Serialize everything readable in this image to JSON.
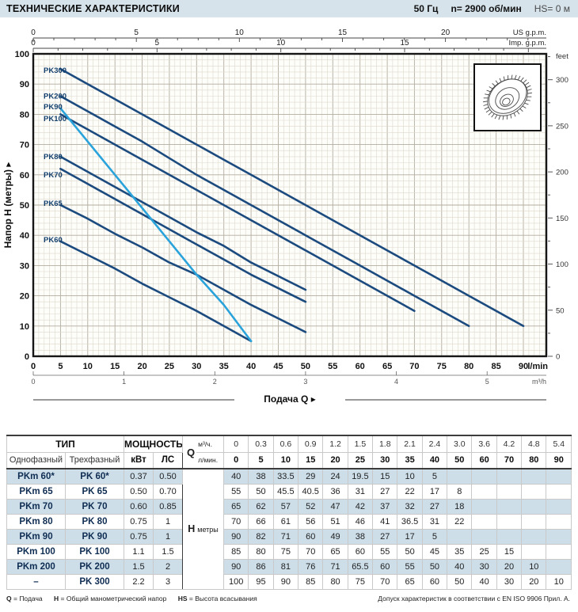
{
  "header": {
    "title": "ТЕХНИЧЕСКИЕ ХАРАКТЕРИСТИКИ",
    "frequency": "50 Гц",
    "speed": "n= 2900 об/мин",
    "suction": "HS= 0 м"
  },
  "chart_data": {
    "type": "line",
    "xlabel": "Подача Q",
    "ylabel": "Напор H (метры)",
    "x_unit": "l/min",
    "x_unit_secondary": "m³/h",
    "xlim": [
      0,
      94
    ],
    "ylim": [
      0,
      100
    ],
    "x_major_step": 5,
    "x_max_label": 90,
    "secondary_max": 5,
    "y_major_step": 10,
    "grid": "on",
    "top_axes": [
      {
        "label": "US g.p.m.",
        "lpm_per_unit": 3.785,
        "major_ticks": [
          0,
          5,
          10,
          15,
          20
        ]
      },
      {
        "label": "Imp. g.p.m.",
        "lpm_per_unit": 4.546,
        "major_ticks": [
          0,
          5,
          10,
          15
        ]
      }
    ],
    "right_axis": {
      "label": "feet",
      "major_step": 50,
      "minor_step": 25,
      "feet_per_m": 3.2808
    },
    "x_lpm": [
      0,
      5,
      10,
      15,
      20,
      25,
      30,
      35,
      40,
      50,
      60,
      70,
      80,
      90
    ],
    "series": [
      {
        "name": "PK300",
        "color": "#1b4a7e",
        "label_h": 94.5,
        "values": [
          100,
          95,
          90,
          85,
          80,
          75,
          70,
          65,
          60,
          50,
          40,
          30,
          20,
          10
        ]
      },
      {
        "name": "PK200",
        "color": "#1b4a7e",
        "label_h": 86,
        "values": [
          90,
          86,
          81,
          76,
          71,
          65.5,
          60,
          55,
          50,
          40,
          30,
          20,
          10,
          null
        ]
      },
      {
        "name": "PK100",
        "color": "#1b4a7e",
        "label_h": 78.5,
        "values": [
          85,
          80,
          75,
          70,
          65,
          60,
          55,
          50,
          45,
          35,
          25,
          15,
          null,
          null
        ]
      },
      {
        "name": "PK80",
        "color": "#1b4a7e",
        "label_h": 66,
        "values": [
          70,
          66,
          61,
          56,
          51,
          46,
          41,
          36.5,
          31,
          22,
          null,
          null,
          null,
          null
        ]
      },
      {
        "name": "PK70",
        "color": "#1b4a7e",
        "label_h": 60,
        "values": [
          65,
          62,
          57,
          52,
          47,
          42,
          37,
          32,
          27,
          18,
          null,
          null,
          null,
          null
        ]
      },
      {
        "name": "PK65",
        "color": "#1b4a7e",
        "label_h": 50.5,
        "values": [
          55,
          50,
          45.5,
          40.5,
          36,
          31,
          27,
          22,
          17,
          8,
          null,
          null,
          null,
          null
        ]
      },
      {
        "name": "PK60",
        "color": "#1b4a7e",
        "label_h": 38.5,
        "values": [
          40,
          38,
          33.5,
          29,
          24,
          19.5,
          15,
          10,
          5,
          null,
          null,
          null,
          null,
          null
        ]
      },
      {
        "name": "PK90",
        "color": "#2aa3db",
        "label_h": 82.5,
        "values": [
          90,
          82,
          71,
          60,
          49,
          38,
          27,
          17,
          5,
          null,
          null,
          null,
          null,
          null
        ]
      }
    ]
  },
  "table": {
    "headers": {
      "type": "ТИП",
      "power": "МОЩНОСТЬ",
      "single": "Однофазный",
      "three": "Трехфазный",
      "kw": "кВт",
      "hp": "ЛС",
      "q": "Q",
      "m3h": "м³/ч.",
      "lmin": "л/мин.",
      "h": "H",
      "h_unit": "метры"
    },
    "q_m3h": [
      "0",
      "0.3",
      "0.6",
      "0.9",
      "1.2",
      "1.5",
      "1.8",
      "2.1",
      "2.4",
      "3.0",
      "3.6",
      "4.2",
      "4.8",
      "5.4"
    ],
    "q_lmin": [
      "0",
      "5",
      "10",
      "15",
      "20",
      "25",
      "30",
      "35",
      "40",
      "50",
      "60",
      "70",
      "80",
      "90"
    ],
    "rows": [
      {
        "single": "PKm 60*",
        "three": "PK 60*",
        "kw": "0.37",
        "hp": "0.50",
        "h": [
          "40",
          "38",
          "33.5",
          "29",
          "24",
          "19.5",
          "15",
          "10",
          "5",
          "",
          "",
          "",
          "",
          ""
        ]
      },
      {
        "single": "PKm 65",
        "three": "PK 65",
        "kw": "0.50",
        "hp": "0.70",
        "h": [
          "55",
          "50",
          "45.5",
          "40.5",
          "36",
          "31",
          "27",
          "22",
          "17",
          "8",
          "",
          "",
          "",
          ""
        ]
      },
      {
        "single": "PKm 70",
        "three": "PK 70",
        "kw": "0.60",
        "hp": "0.85",
        "h": [
          "65",
          "62",
          "57",
          "52",
          "47",
          "42",
          "37",
          "32",
          "27",
          "18",
          "",
          "",
          "",
          ""
        ]
      },
      {
        "single": "PKm 80",
        "three": "PK 80",
        "kw": "0.75",
        "hp": "1",
        "h": [
          "70",
          "66",
          "61",
          "56",
          "51",
          "46",
          "41",
          "36.5",
          "31",
          "22",
          "",
          "",
          "",
          ""
        ]
      },
      {
        "single": "PKm 90",
        "three": "PK 90",
        "kw": "0.75",
        "hp": "1",
        "h": [
          "90",
          "82",
          "71",
          "60",
          "49",
          "38",
          "27",
          "17",
          "5",
          "",
          "",
          "",
          "",
          ""
        ]
      },
      {
        "single": "PKm 100",
        "three": "PK 100",
        "kw": "1.1",
        "hp": "1.5",
        "h": [
          "85",
          "80",
          "75",
          "70",
          "65",
          "60",
          "55",
          "50",
          "45",
          "35",
          "25",
          "15",
          "",
          ""
        ]
      },
      {
        "single": "PKm 200",
        "three": "PK 200",
        "kw": "1.5",
        "hp": "2",
        "h": [
          "90",
          "86",
          "81",
          "76",
          "71",
          "65.5",
          "60",
          "55",
          "50",
          "40",
          "30",
          "20",
          "10",
          ""
        ]
      },
      {
        "single": "–",
        "three": "PK 300",
        "kw": "2.2",
        "hp": "3",
        "h": [
          "100",
          "95",
          "90",
          "85",
          "80",
          "75",
          "70",
          "65",
          "60",
          "50",
          "40",
          "30",
          "20",
          "10"
        ]
      }
    ]
  },
  "footnote": {
    "q_key": "Q",
    "q_text": "= Подача",
    "h_key": "H",
    "h_text": "= Общий манометрический напор",
    "hs_key": "HS",
    "hs_text": "= Высота всасывания",
    "tolerance": "Допуск характеристик в соответствии с EN ISO 9906 Прил. А."
  }
}
